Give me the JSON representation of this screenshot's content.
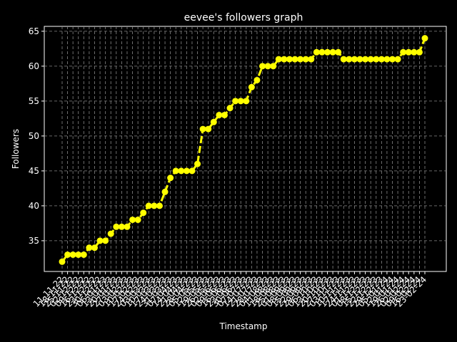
{
  "chart_data": {
    "type": "line",
    "title": "eevee's followers graph",
    "x_label": "Timestamp",
    "y_label": "Followers",
    "categories": [
      "11-11-22",
      "18-11-22",
      "25-11-22",
      "02-12-22",
      "09-12-22",
      "16-12-22",
      "23-12-22",
      "30-12-22",
      "06-01-23",
      "13-01-23",
      "20-01-23",
      "27-01-23",
      "03-02-23",
      "10-02-23",
      "17-02-23",
      "24-02-23",
      "03-03-23",
      "10-03-23",
      "17-03-23",
      "24-03-23",
      "31-03-23",
      "07-04-23",
      "14-04-23",
      "21-04-23",
      "28-04-23",
      "05-05-23",
      "12-05-23",
      "19-05-23",
      "26-05-23",
      "02-06-23",
      "09-06-23",
      "16-06-23",
      "23-06-23",
      "30-06-23",
      "07-07-23",
      "14-07-23",
      "21-07-23",
      "28-07-23",
      "04-08-23",
      "11-08-23",
      "18-08-23",
      "25-08-23",
      "01-09-23",
      "08-09-23",
      "15-09-23",
      "22-09-23",
      "29-09-23",
      "06-10-23",
      "13-10-23",
      "20-10-23",
      "27-10-23",
      "03-11-23",
      "10-11-23",
      "17-11-23",
      "24-11-23",
      "01-12-23",
      "08-12-23",
      "15-12-23",
      "22-12-23",
      "29-12-23",
      "05-01-24",
      "12-01-24",
      "19-01-24",
      "26-01-24",
      "02-02-24",
      "09-02-24",
      "16-02-24",
      "23-02-24"
    ],
    "series": [
      {
        "name": "Followers",
        "color": "#ffff00",
        "values": [
          32,
          33,
          33,
          33,
          33,
          34,
          34,
          35,
          35,
          36,
          37,
          37,
          37,
          38,
          38,
          39,
          40,
          40,
          40,
          42,
          44,
          45,
          45,
          45,
          45,
          46,
          51,
          51,
          52,
          53,
          53,
          54,
          55,
          55,
          55,
          57,
          58,
          60,
          60,
          60,
          61,
          61,
          61,
          61,
          61,
          61,
          61,
          62,
          62,
          62,
          62,
          62,
          61,
          61,
          61,
          61,
          61,
          61,
          61,
          61,
          61,
          61,
          61,
          62,
          62,
          62,
          62,
          64
        ]
      }
    ],
    "ylim": [
      30.6,
      65.7
    ],
    "yticks": [
      35,
      40,
      45,
      50,
      55,
      60,
      65
    ],
    "grid": true
  }
}
